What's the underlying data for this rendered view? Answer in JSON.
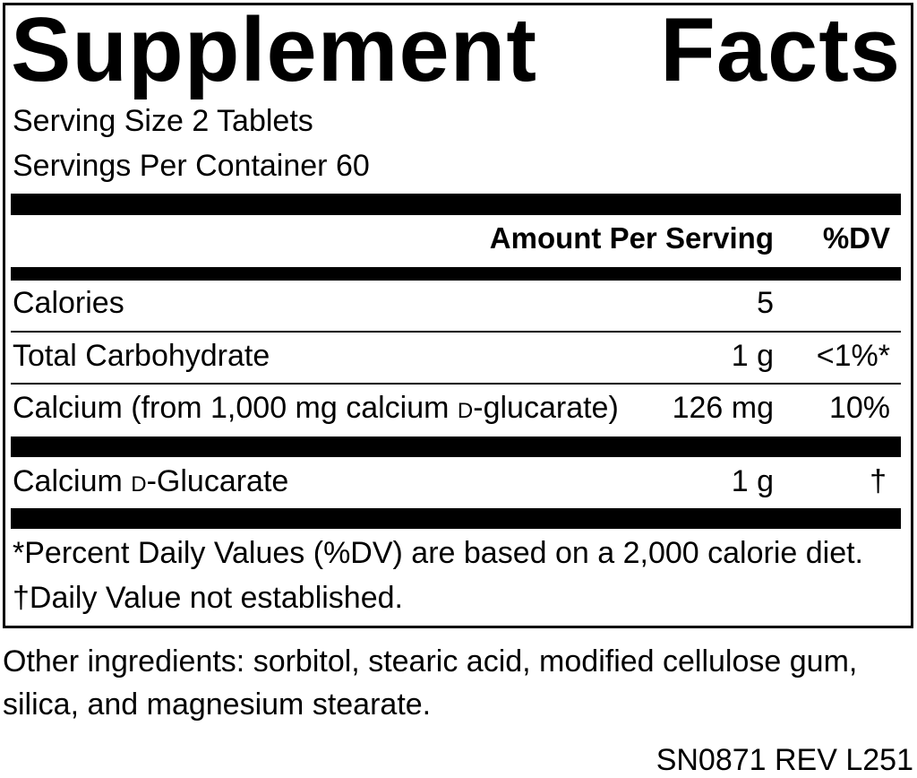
{
  "title": {
    "word1": "Supplement",
    "word2": "Facts"
  },
  "serving_size": "Serving Size 2 Tablets",
  "servings_per_container": "Servings Per Container 60",
  "header": {
    "amount": "Amount Per Serving",
    "dv": "%DV"
  },
  "rows": [
    {
      "name": "Calories",
      "amount": "5",
      "dv": ""
    },
    {
      "name": "Total Carbohydrate",
      "amount": "1 g",
      "dv": "<1%*"
    },
    {
      "name_pre": "Calcium (from 1,000 mg calcium ",
      "name_sc": "d",
      "name_post": "-glucarate)",
      "amount": "126 mg",
      "dv": "10%"
    },
    {
      "name_pre": "Calcium ",
      "name_sc": "d",
      "name_post": "-Glucarate",
      "amount": "1 g",
      "dv": "†"
    }
  ],
  "footnotes": [
    "*Percent Daily Values (%DV) are based on a 2,000 calorie diet.",
    "†Daily Value not established."
  ],
  "other_ingredients": [
    "Other ingredients: sorbitol, stearic acid, modified cellulose gum,",
    "silica, and magnesium stearate."
  ],
  "code": "SN0871 REV L251"
}
